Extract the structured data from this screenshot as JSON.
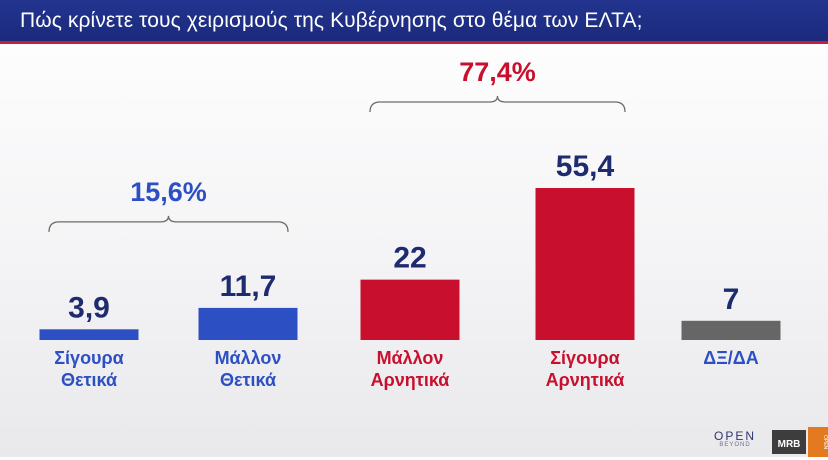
{
  "header": {
    "title": "Πώς κρίνετε τους χειρισμούς της Κυβέρνησης στο θέμα των ΕΛΤΑ;"
  },
  "colors": {
    "header_bg": "#1f2f85",
    "header_accent": "#c31f3b",
    "positive": "#2d4fc4",
    "negative": "#c8102e",
    "neutral": "#666666",
    "value_text": "#1e2b6e"
  },
  "chart_data": {
    "type": "bar",
    "title": "Πώς κρίνετε τους χειρισμούς της Κυβέρνησης στο θέμα των ΕΛΤΑ;",
    "categories": [
      [
        "Σίγουρα",
        "Θετικά"
      ],
      [
        "Μάλλον",
        "Θετικά"
      ],
      [
        "Μάλλον",
        "Αρνητικά"
      ],
      [
        "Σίγουρα",
        "Αρνητικά"
      ],
      [
        "ΔΞ/ΔΑ"
      ]
    ],
    "values": [
      3.9,
      11.7,
      22,
      55.4,
      7
    ],
    "value_labels": [
      "3,9",
      "11,7",
      "22",
      "55,4",
      "7"
    ],
    "bar_colors": [
      "#2d4fc4",
      "#2d4fc4",
      "#c8102e",
      "#c8102e",
      "#666666"
    ],
    "label_colors": [
      "#2d4fc4",
      "#2d4fc4",
      "#c8102e",
      "#c8102e",
      "#2d4fc4"
    ],
    "groups": [
      {
        "label": "15,6%",
        "value": 15.6,
        "from": 0,
        "to": 1,
        "color": "#2d4fc4"
      },
      {
        "label": "77,4%",
        "value": 77.4,
        "from": 2,
        "to": 3,
        "color": "#c8102e"
      }
    ],
    "ylim": [
      0,
      100
    ],
    "grid": false,
    "xlabel": "",
    "ylabel": ""
  },
  "branding": {
    "open_logo": "OPEN",
    "open_tagline": "BEYOND",
    "mrb_logo": "MRB",
    "corner_tab": "OPEN"
  }
}
